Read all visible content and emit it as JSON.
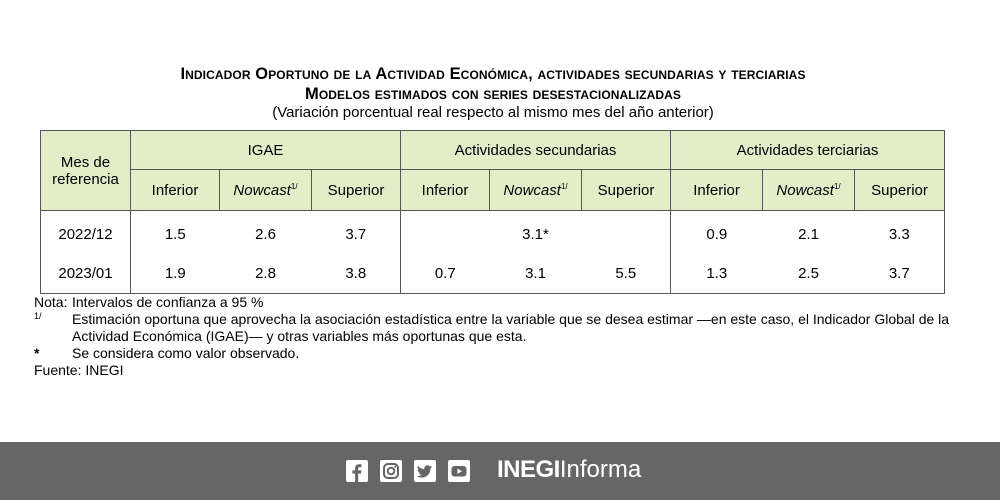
{
  "title": {
    "line1": "Indicador Oportuno de la Actividad Económica, actividades secundarias y terciarias",
    "line2": "Modelos estimados con series desestacionalizadas",
    "line3": "(Variación porcentual real respecto al mismo mes del año anterior)"
  },
  "table": {
    "row_header": "Mes de referencia",
    "groups": [
      "IGAE",
      "Actividades secundarias",
      "Actividades terciarias"
    ],
    "sub": {
      "inferior": "Inferior",
      "nowcast": "Nowcast",
      "nowcast_sup": "1/",
      "superior": "Superior"
    },
    "rows": [
      {
        "mes": "2022/12",
        "values": [
          "1.5",
          "2.6",
          "3.7",
          "",
          "3.1*",
          "",
          "0.9",
          "2.1",
          "3.3"
        ]
      },
      {
        "mes": "2023/01",
        "values": [
          "1.9",
          "2.8",
          "3.8",
          "0.7",
          "3.1",
          "5.5",
          "1.3",
          "2.5",
          "3.7"
        ]
      }
    ]
  },
  "notes": {
    "nota_label": "Nota:",
    "nota_text": "Intervalos de confianza a 95 %",
    "fn1_marker": "1/",
    "fn1_text": "Estimación oportuna que aprovecha la asociación estadística entre la variable que se desea estimar —en este caso, el Indicador Global de la Actividad Económica (IGAE)— y otras variables más oportunas que esta.",
    "fn2_marker": "*",
    "fn2_text": "Se considera como valor observado.",
    "fuente": "Fuente: INEGI"
  },
  "footer": {
    "brand_bold": "INEGI",
    "brand_rest": "Informa",
    "icons": [
      "facebook-icon",
      "instagram-icon",
      "twitter-icon",
      "youtube-icon"
    ],
    "bg_color": "#666666",
    "header_color": "#e3eec9"
  }
}
